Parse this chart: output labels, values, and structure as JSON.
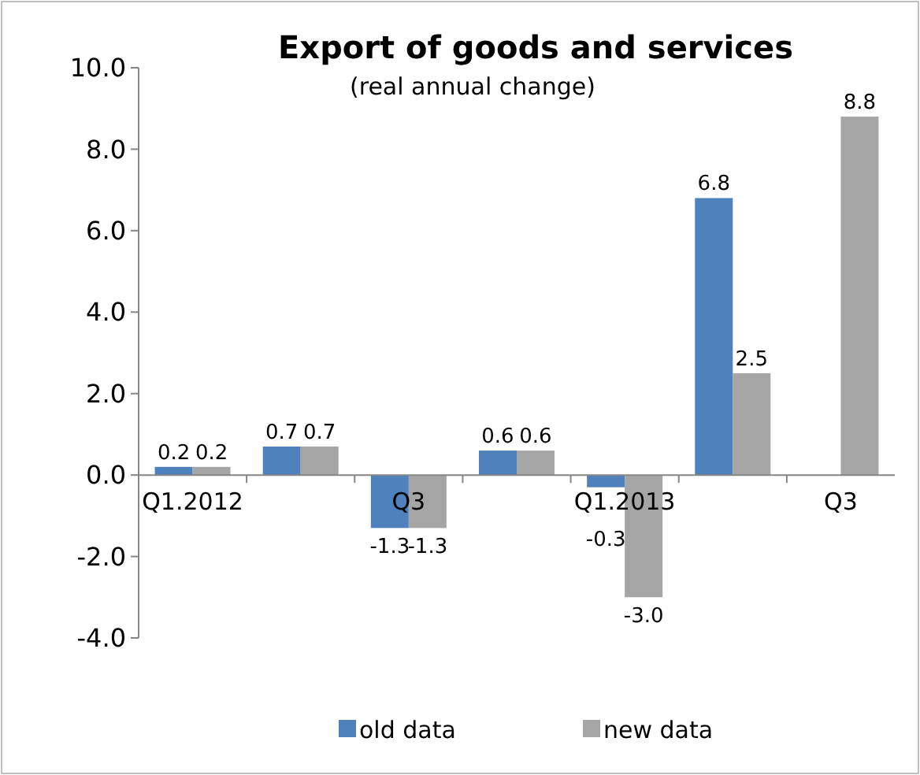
{
  "chart_data": {
    "type": "bar",
    "title": "Export of goods and services",
    "subtitle": "(real annual change)",
    "categories": [
      "Q1.2012",
      null,
      "Q3",
      null,
      "Q1.2013",
      null,
      "Q3"
    ],
    "series": [
      {
        "name": "old data",
        "color": "#4f81bd",
        "values": [
          0.2,
          0.7,
          -1.3,
          0.6,
          -0.3,
          6.8,
          null
        ],
        "value_labels": [
          "0.2",
          "0.7",
          "-1.3",
          "0.6",
          "-0.3",
          "6.8",
          null
        ]
      },
      {
        "name": "new data",
        "color": "#a5a5a5",
        "values": [
          0.2,
          0.7,
          -1.3,
          0.6,
          -3.0,
          2.5,
          8.8
        ],
        "value_labels": [
          "0.2",
          "0.7",
          "-1.3",
          "0.6",
          "-3.0",
          "2.5",
          "8.8"
        ]
      }
    ],
    "ylim": [
      -4,
      10
    ],
    "yticks": [
      {
        "value": -4,
        "label": "-4.0"
      },
      {
        "value": -2,
        "label": "-2.0"
      },
      {
        "value": 0,
        "label": "0.0"
      },
      {
        "value": 2,
        "label": "2.0"
      },
      {
        "value": 4,
        "label": "4.0"
      },
      {
        "value": 6,
        "label": "6.0"
      },
      {
        "value": 8,
        "label": "8.0"
      },
      {
        "value": 10,
        "label": "10.0"
      }
    ],
    "legend": "bottom",
    "grid": false
  }
}
